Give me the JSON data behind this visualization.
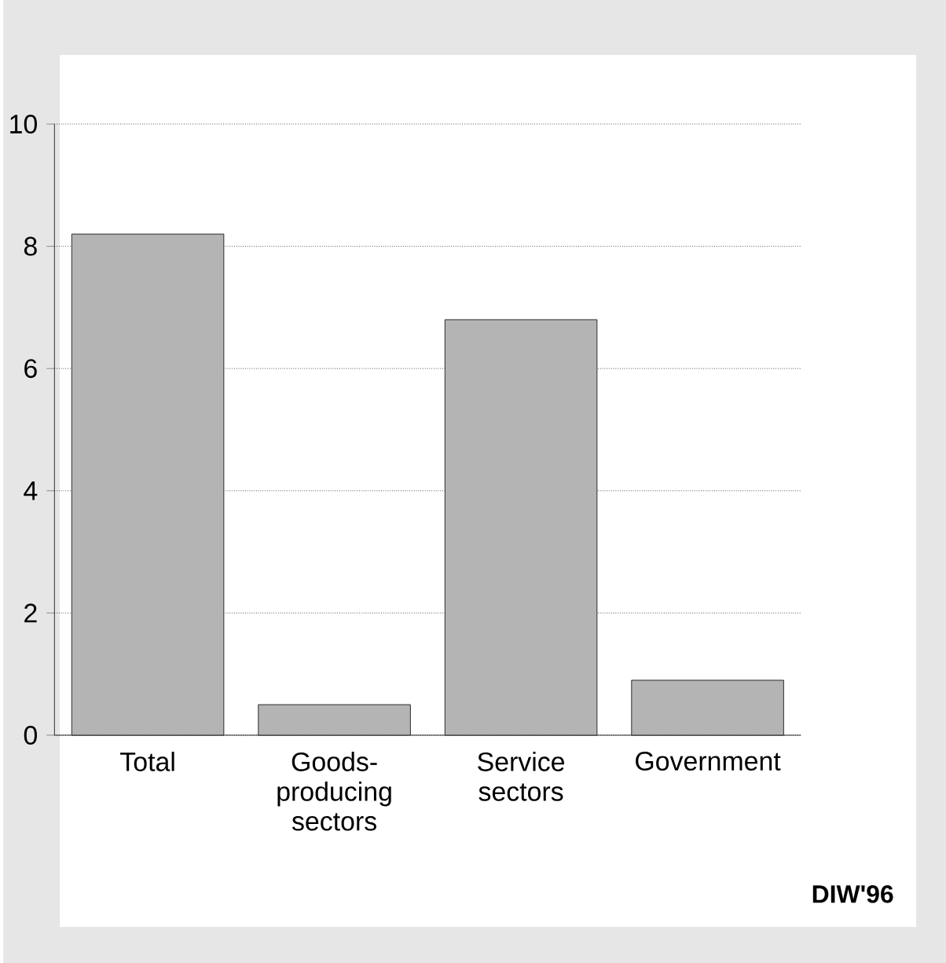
{
  "chart_data": {
    "type": "bar",
    "categories": [
      "Total",
      "Goods-producing sectors",
      "Service sectors",
      "Government"
    ],
    "values": [
      8.2,
      0.5,
      6.8,
      0.9
    ],
    "color": "#b4b4b4",
    "ylim": [
      0,
      10
    ],
    "yticks": [
      0,
      2,
      4,
      6,
      8,
      10
    ],
    "grid": "y",
    "annotations": [
      "DIW'96"
    ]
  }
}
